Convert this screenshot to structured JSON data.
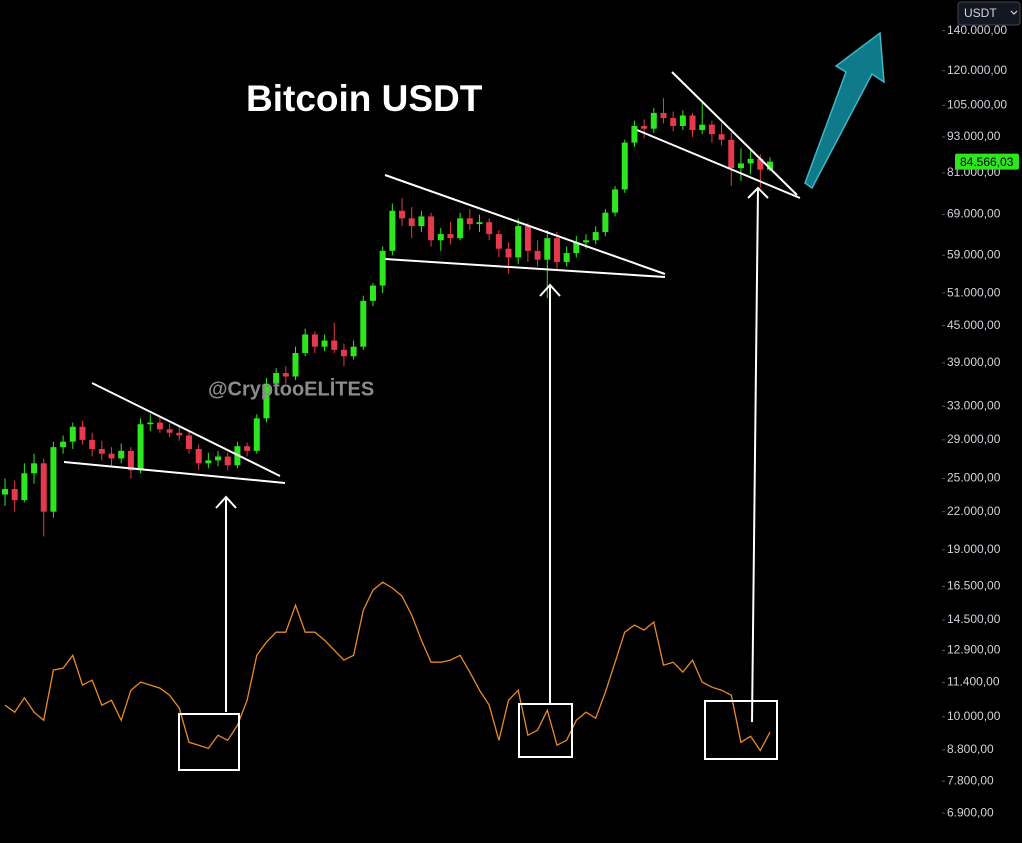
{
  "chart_data": {
    "type": "candlestick",
    "title": "Bitcoin USDT",
    "watermark": "@CryptooELİTES",
    "currency": "USDT",
    "log_scale": true,
    "grid": false,
    "up_color": "#2ee61f",
    "down_color": "#e5394e",
    "ylim": [
      6150,
      157500
    ],
    "yticks": [
      {
        "value": 140000,
        "label": "140.000,00"
      },
      {
        "value": 120000,
        "label": "120.000,00"
      },
      {
        "value": 105000,
        "label": "105.000,00"
      },
      {
        "value": 93000,
        "label": "93.000,00"
      },
      {
        "value": 81000,
        "label": "81.000,00"
      },
      {
        "value": 69000,
        "label": "69.000,00"
      },
      {
        "value": 59000,
        "label": "59.000,00"
      },
      {
        "value": 51000,
        "label": "51.000,00"
      },
      {
        "value": 45000,
        "label": "45.000,00"
      },
      {
        "value": 39000,
        "label": "39.000,00"
      },
      {
        "value": 33000,
        "label": "33.000,00"
      },
      {
        "value": 29000,
        "label": "29.000,00"
      },
      {
        "value": 25000,
        "label": "25.000,00"
      },
      {
        "value": 22000,
        "label": "22.000,00"
      },
      {
        "value": 19000,
        "label": "19.000,00"
      },
      {
        "value": 16500,
        "label": "16.500,00"
      },
      {
        "value": 14500,
        "label": "14.500,00"
      },
      {
        "value": 12900,
        "label": "12.900,00"
      },
      {
        "value": 11400,
        "label": "11.400,00"
      },
      {
        "value": 10000,
        "label": "10.000,00"
      },
      {
        "value": 8800,
        "label": "8.800,00"
      },
      {
        "value": 7800,
        "label": "7.800,00"
      },
      {
        "value": 6900,
        "label": "6.900,00"
      }
    ],
    "current_price": {
      "value": 84566.03,
      "label": "84.566,03"
    },
    "open": [
      23500,
      24000,
      23000,
      25500,
      26500,
      22000,
      28200,
      28800,
      30500,
      29000,
      28000,
      27500,
      27000,
      27800,
      25800,
      30800,
      31000,
      30200,
      29800,
      29500,
      28000,
      26500,
      26800,
      27200,
      26300,
      28300,
      27800,
      31500,
      36000,
      37500,
      37000,
      40500,
      43500,
      41500,
      42500,
      41000,
      40000,
      41500,
      49500,
      52500,
      60000,
      70000,
      68000,
      66000,
      68500,
      62500,
      64000,
      63000,
      68000,
      66500,
      67000,
      64000,
      60500,
      58500,
      66000,
      60000,
      58000,
      63000,
      57500,
      59500,
      62000,
      62500,
      64500,
      69500,
      76000,
      91000,
      97000,
      96000,
      102000,
      100000,
      97000,
      101000,
      95500,
      97500,
      94000,
      92000,
      82500,
      84000,
      85500,
      82000
    ],
    "high": [
      25000,
      24800,
      26500,
      27500,
      27000,
      28800,
      29500,
      31000,
      31200,
      29800,
      28900,
      28200,
      28600,
      28200,
      31500,
      32000,
      31600,
      30900,
      30600,
      30000,
      28500,
      27600,
      27800,
      27600,
      28800,
      28700,
      32000,
      36800,
      38200,
      38500,
      41500,
      44500,
      44000,
      43500,
      45500,
      42000,
      42500,
      50500,
      53000,
      61000,
      72000,
      73500,
      71000,
      70000,
      69500,
      65500,
      67000,
      69500,
      70500,
      69000,
      68000,
      65000,
      62000,
      68000,
      66800,
      62500,
      65000,
      64500,
      61000,
      63500,
      64000,
      66000,
      70500,
      77000,
      92000,
      99000,
      99500,
      104000,
      108000,
      102500,
      103000,
      102000,
      106000,
      99000,
      98000,
      94500,
      89000,
      88500,
      87000,
      86000
    ],
    "low": [
      22500,
      22000,
      22800,
      24500,
      20000,
      21500,
      27500,
      28000,
      28500,
      27200,
      26800,
      26200,
      26500,
      25000,
      25500,
      30000,
      29800,
      29300,
      28900,
      27500,
      25800,
      26000,
      26200,
      25800,
      26000,
      27200,
      27500,
      31000,
      35200,
      36000,
      36500,
      40000,
      40500,
      40800,
      40500,
      38500,
      39500,
      41000,
      48500,
      51000,
      59000,
      66000,
      63000,
      64500,
      61000,
      60000,
      61500,
      62500,
      65000,
      64500,
      62500,
      58500,
      55000,
      57000,
      57500,
      56500,
      50000,
      55500,
      56500,
      58500,
      60500,
      61500,
      63500,
      68500,
      75000,
      89500,
      92500,
      94500,
      98000,
      95000,
      95500,
      93000,
      94000,
      91000,
      90000,
      77000,
      78500,
      80500,
      76500,
      81500
    ],
    "close": [
      24000,
      23000,
      25500,
      26500,
      22000,
      28200,
      28800,
      30500,
      29000,
      28000,
      27500,
      27000,
      27800,
      25800,
      30800,
      31000,
      30200,
      29800,
      29500,
      28000,
      26500,
      26800,
      27200,
      26300,
      28300,
      27800,
      31500,
      36000,
      37500,
      37000,
      40500,
      43500,
      41500,
      42500,
      41000,
      40000,
      41500,
      49500,
      52500,
      60000,
      70000,
      68000,
      66000,
      68500,
      62500,
      64000,
      63000,
      68000,
      66500,
      67000,
      64000,
      60500,
      58500,
      66000,
      60000,
      58000,
      63000,
      57500,
      59500,
      62000,
      62500,
      64500,
      69500,
      76000,
      91000,
      97000,
      96000,
      102000,
      100000,
      97000,
      101000,
      95500,
      97500,
      94000,
      92000,
      82500,
      84000,
      85500,
      82000,
      84566.03
    ],
    "line": {
      "color": "#e8892a",
      "values": [
        10450,
        10170,
        10750,
        10170,
        9860,
        11960,
        12050,
        12660,
        11290,
        11510,
        10450,
        10650,
        9860,
        11070,
        11420,
        11290,
        11160,
        10860,
        10330,
        9060,
        8960,
        8850,
        9310,
        9130,
        9670,
        10650,
        12660,
        13320,
        13840,
        13840,
        15350,
        13840,
        13840,
        13420,
        12910,
        12430,
        12660,
        15060,
        16270,
        16770,
        16400,
        15900,
        14780,
        13420,
        12330,
        12330,
        12430,
        12660,
        11870,
        11070,
        10450,
        9130,
        10650,
        11070,
        9310,
        9490,
        10250,
        8960,
        9130,
        9860,
        10170,
        9940,
        10990,
        12330,
        13840,
        14220,
        13950,
        14390,
        12190,
        12330,
        11870,
        12430,
        11420,
        11200,
        11070,
        10860,
        9060,
        9270,
        8780,
        9420
      ]
    }
  }
}
